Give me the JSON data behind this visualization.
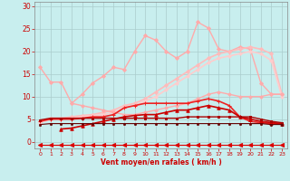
{
  "background_color": "#c8eeee",
  "grid_color": "#aacccc",
  "xlabel": "Vent moyen/en rafales ( km/h )",
  "xlabel_color": "#cc0000",
  "tick_color": "#cc0000",
  "xlim": [
    -0.5,
    23.5
  ],
  "ylim": [
    -1.5,
    31
  ],
  "yticks": [
    0,
    5,
    10,
    15,
    20,
    25,
    30
  ],
  "xticks": [
    0,
    1,
    2,
    3,
    4,
    5,
    6,
    7,
    8,
    9,
    10,
    11,
    12,
    13,
    14,
    15,
    16,
    17,
    18,
    19,
    20,
    21,
    22,
    23
  ],
  "series": [
    {
      "x": [
        0,
        1,
        2,
        3,
        4,
        5,
        6,
        7,
        8,
        9,
        10,
        11,
        12,
        13,
        14,
        15,
        16,
        17,
        18,
        19,
        20,
        21,
        22,
        23
      ],
      "y": [
        16.5,
        13.2,
        13.2,
        8.5,
        10.5,
        13.0,
        14.5,
        16.5,
        16.0,
        20.0,
        23.5,
        22.5,
        20.0,
        18.5,
        20.0,
        26.5,
        25.2,
        20.5,
        20.0,
        21.0,
        20.5,
        13.0,
        10.5,
        10.5
      ],
      "color": "#ffaaaa",
      "lw": 1.0,
      "marker": "D",
      "ms": 2.0
    },
    {
      "x": [
        0,
        1,
        2,
        3,
        4,
        5,
        6,
        7,
        8,
        9,
        10,
        11,
        12,
        13,
        14,
        15,
        16,
        17,
        18,
        19,
        20,
        21,
        22,
        23
      ],
      "y": [
        4.5,
        5.2,
        5.2,
        5.5,
        5.8,
        6.0,
        6.5,
        7.0,
        8.0,
        8.5,
        9.5,
        11.0,
        12.5,
        14.0,
        15.5,
        17.0,
        18.5,
        19.5,
        20.0,
        20.5,
        21.0,
        20.5,
        19.5,
        10.5
      ],
      "color": "#ffbbbb",
      "lw": 1.2,
      "marker": "D",
      "ms": 2.0
    },
    {
      "x": [
        0,
        1,
        2,
        3,
        4,
        5,
        6,
        7,
        8,
        9,
        10,
        11,
        12,
        13,
        14,
        15,
        16,
        17,
        18,
        19,
        20,
        21,
        22,
        23
      ],
      "y": [
        4.2,
        5.0,
        5.0,
        5.2,
        5.5,
        5.8,
        6.0,
        6.5,
        7.5,
        8.0,
        9.0,
        10.0,
        11.5,
        13.0,
        14.5,
        16.0,
        17.5,
        18.5,
        19.0,
        19.5,
        20.0,
        19.5,
        18.0,
        10.0
      ],
      "color": "#ffcccc",
      "lw": 1.2,
      "marker": "D",
      "ms": 1.8
    },
    {
      "x": [
        3,
        4,
        5,
        6,
        7,
        8,
        9,
        10,
        11,
        12,
        13,
        14,
        15,
        16,
        17,
        18,
        19,
        20,
        21,
        22,
        23
      ],
      "y": [
        8.5,
        8.0,
        7.5,
        7.0,
        6.5,
        6.0,
        6.0,
        6.5,
        7.0,
        7.5,
        8.0,
        8.5,
        9.5,
        10.5,
        11.0,
        10.5,
        10.0,
        10.0,
        10.0,
        10.5,
        10.5
      ],
      "color": "#ffaaaa",
      "lw": 1.0,
      "marker": "D",
      "ms": 1.8
    },
    {
      "x": [
        0,
        1,
        2,
        3,
        4,
        5,
        6,
        7,
        8,
        9,
        10,
        11,
        12,
        13,
        14,
        15,
        16,
        17,
        18,
        19,
        20,
        21,
        22,
        23
      ],
      "y": [
        4.5,
        5.0,
        5.0,
        5.0,
        5.2,
        5.5,
        5.5,
        6.0,
        7.5,
        8.0,
        8.5,
        8.5,
        8.5,
        8.5,
        8.5,
        9.0,
        9.5,
        9.0,
        8.0,
        5.5,
        4.5,
        4.2,
        4.0,
        4.0
      ],
      "color": "#ee2222",
      "lw": 1.2,
      "marker": "+",
      "ms": 3.5
    },
    {
      "x": [
        2,
        3,
        4,
        5,
        6,
        7,
        8,
        9,
        10,
        11,
        12,
        13,
        14,
        15,
        16,
        17,
        18,
        19,
        20,
        21,
        22,
        23
      ],
      "y": [
        2.8,
        3.0,
        3.5,
        4.0,
        4.5,
        5.0,
        5.5,
        5.8,
        6.0,
        6.0,
        6.5,
        7.0,
        7.0,
        7.5,
        8.0,
        7.5,
        7.0,
        5.5,
        5.0,
        4.5,
        4.2,
        4.0
      ],
      "color": "#cc0000",
      "lw": 1.2,
      "marker": "^",
      "ms": 2.5
    },
    {
      "x": [
        0,
        1,
        2,
        3,
        4,
        5,
        6,
        7,
        8,
        9,
        10,
        11,
        12,
        13,
        14,
        15,
        16,
        17,
        18,
        19,
        20,
        21,
        22,
        23
      ],
      "y": [
        4.8,
        5.2,
        5.2,
        5.2,
        5.2,
        5.2,
        5.2,
        5.2,
        5.2,
        5.2,
        5.2,
        5.2,
        5.2,
        5.2,
        5.5,
        5.5,
        5.5,
        5.5,
        5.5,
        5.5,
        5.5,
        5.0,
        4.5,
        4.2
      ],
      "color": "#aa0000",
      "lw": 1.0,
      "marker": "s",
      "ms": 1.5
    },
    {
      "x": [
        0,
        1,
        2,
        3,
        4,
        5,
        6,
        7,
        8,
        9,
        10,
        11,
        12,
        13,
        14,
        15,
        16,
        17,
        18,
        19,
        20,
        21,
        22,
        23
      ],
      "y": [
        3.8,
        4.0,
        4.0,
        4.0,
        4.0,
        4.0,
        4.0,
        4.0,
        4.0,
        4.0,
        4.0,
        4.0,
        4.0,
        4.0,
        4.0,
        4.0,
        4.0,
        4.0,
        4.0,
        4.0,
        4.0,
        4.0,
        3.8,
        3.8
      ],
      "color": "#660000",
      "lw": 0.8,
      "marker": "s",
      "ms": 1.2
    },
    {
      "x": [
        0,
        1,
        2,
        3,
        4,
        5,
        6,
        7,
        8,
        9,
        10,
        11,
        12,
        13,
        14,
        15,
        16,
        17,
        18,
        19,
        20,
        21,
        22,
        23
      ],
      "y": [
        -0.7,
        -0.7,
        -0.7,
        -0.7,
        -0.7,
        -0.7,
        -0.7,
        -0.7,
        -0.7,
        -0.7,
        -0.7,
        -0.7,
        -0.7,
        -0.7,
        -0.7,
        -0.7,
        -0.7,
        -0.7,
        -0.7,
        -0.7,
        -0.7,
        -0.7,
        -0.7,
        -0.7
      ],
      "color": "#dd0000",
      "lw": 0.8,
      "marker": "<",
      "ms": 3.0
    }
  ]
}
